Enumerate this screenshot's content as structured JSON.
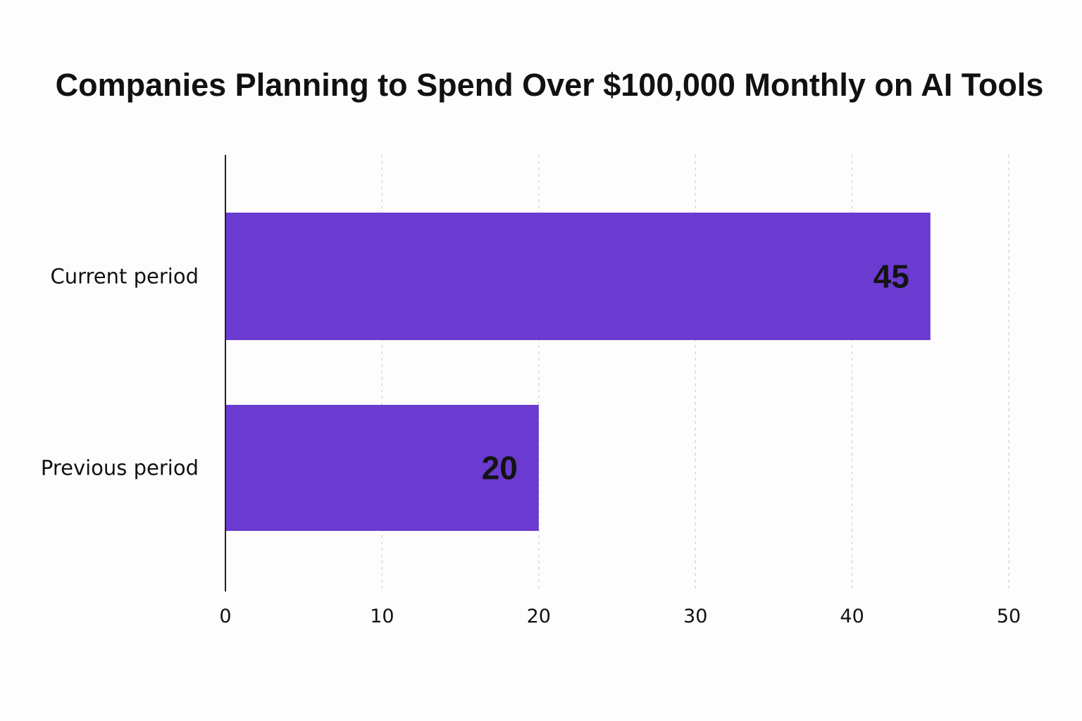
{
  "chart_data": {
    "type": "bar",
    "orientation": "horizontal",
    "title": "Companies Planning to Spend Over $100,000 Monthly on AI Tools",
    "categories": [
      "Current period",
      "Previous period"
    ],
    "values": [
      45,
      20
    ],
    "value_labels": [
      "45",
      "20"
    ],
    "xlim": [
      0,
      50
    ],
    "xticks": [
      0,
      10,
      20,
      30,
      40,
      50
    ],
    "xtick_labels": [
      "0",
      "10",
      "20",
      "30",
      "40",
      "50"
    ],
    "xlabel": "",
    "ylabel": "",
    "grid": "vertical dashed",
    "legend": "none",
    "bar_color": "#6b3ad0"
  }
}
